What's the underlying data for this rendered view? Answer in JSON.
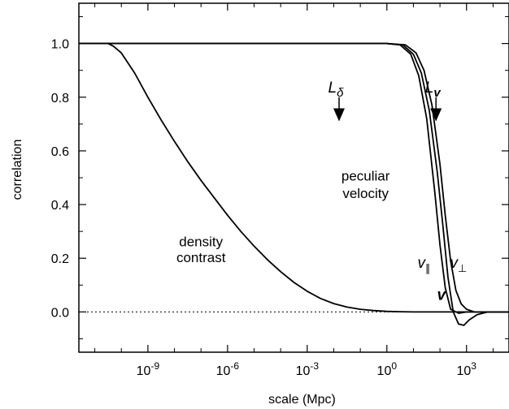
{
  "chart_data": {
    "type": "line",
    "title": "",
    "xlabel": "scale (Mpc)",
    "ylabel": "correlation",
    "x_scale": "log10",
    "xlim_log10": [
      -11.6,
      4.6
    ],
    "ylim": [
      -0.15,
      1.15
    ],
    "xticks": [
      {
        "log10": -9,
        "base": "10",
        "exp": "-9"
      },
      {
        "log10": -6,
        "base": "10",
        "exp": "-6"
      },
      {
        "log10": -3,
        "base": "10",
        "exp": "-3"
      },
      {
        "log10": 0,
        "base": "10",
        "exp": "0"
      },
      {
        "log10": 3,
        "base": "10",
        "exp": "3"
      }
    ],
    "yticks": [
      {
        "value": 0.0,
        "label": "0.0"
      },
      {
        "value": 0.2,
        "label": "0.2"
      },
      {
        "value": 0.4,
        "label": "0.4"
      },
      {
        "value": 0.6,
        "label": "0.6"
      },
      {
        "value": 0.8,
        "label": "0.8"
      },
      {
        "value": 1.0,
        "label": "1.0"
      }
    ],
    "grid": false,
    "zero_line": "dotted",
    "series": [
      {
        "name": "density contrast",
        "x_log10": [
          -11.6,
          -10.5,
          -10.3,
          -10.0,
          -9.5,
          -9.0,
          -8.5,
          -8.0,
          -7.5,
          -7.0,
          -6.5,
          -6.0,
          -5.5,
          -5.0,
          -4.5,
          -4.0,
          -3.5,
          -3.0,
          -2.5,
          -2.0,
          -1.5,
          -1.0,
          -0.5,
          0.0,
          0.5,
          1.0,
          1.5,
          2.0,
          3.0,
          4.6
        ],
        "y": [
          1.0,
          1.0,
          0.99,
          0.965,
          0.89,
          0.8,
          0.715,
          0.635,
          0.56,
          0.49,
          0.425,
          0.36,
          0.3,
          0.245,
          0.195,
          0.15,
          0.11,
          0.077,
          0.05,
          0.031,
          0.018,
          0.01,
          0.005,
          0.002,
          0.001,
          0.0,
          0.0,
          0.0,
          0.0,
          0.0
        ]
      },
      {
        "name": "v∥",
        "x_log10": [
          -11.6,
          0.0,
          0.5,
          0.9,
          1.2,
          1.5,
          1.8,
          2.0,
          2.2,
          2.4,
          2.7,
          3.0,
          4.6
        ],
        "y": [
          1.0,
          1.0,
          0.995,
          0.96,
          0.88,
          0.72,
          0.45,
          0.25,
          0.09,
          0.01,
          -0.005,
          0.0,
          0.0
        ]
      },
      {
        "name": "v",
        "x_log10": [
          -11.6,
          0.0,
          0.6,
          1.0,
          1.3,
          1.6,
          1.9,
          2.1,
          2.3,
          2.5,
          2.7,
          2.9,
          3.1,
          3.4,
          3.8,
          4.6
        ],
        "y": [
          1.0,
          1.0,
          0.995,
          0.96,
          0.89,
          0.75,
          0.52,
          0.33,
          0.13,
          0.0,
          -0.045,
          -0.05,
          -0.03,
          -0.01,
          0.0,
          0.0
        ]
      },
      {
        "name": "v⊥",
        "x_log10": [
          -11.6,
          0.0,
          0.7,
          1.1,
          1.4,
          1.7,
          2.0,
          2.2,
          2.4,
          2.6,
          2.8,
          3.0,
          3.3,
          3.6,
          4.6
        ],
        "y": [
          1.0,
          1.0,
          0.995,
          0.965,
          0.9,
          0.77,
          0.55,
          0.36,
          0.19,
          0.08,
          0.03,
          0.01,
          0.0,
          0.0,
          0.0
        ]
      }
    ],
    "annotations": [
      {
        "text": "density",
        "x_log10": -7.0,
        "y": 0.245
      },
      {
        "text": "contrast",
        "x_log10": -7.0,
        "y": 0.185
      },
      {
        "text": "peculiar",
        "x_log10": -0.8,
        "y": 0.49
      },
      {
        "text": "velocity",
        "x_log10": -0.8,
        "y": 0.425
      },
      {
        "text": "v",
        "sub": "∥",
        "x_log10": 1.4,
        "y": 0.165
      },
      {
        "text": "v",
        "sub": "⊥",
        "x_log10": 2.7,
        "y": 0.165
      },
      {
        "text": "v",
        "bold": true,
        "x_log10": 2.05,
        "y": 0.045
      }
    ],
    "arrows": [
      {
        "label": "L",
        "sub": "δ",
        "x_log10": -1.8,
        "y_top": 0.8,
        "y_tip": 0.71
      },
      {
        "label": "L",
        "sub": "v",
        "x_log10": 1.85,
        "y_top": 0.8,
        "y_tip": 0.71
      }
    ]
  }
}
